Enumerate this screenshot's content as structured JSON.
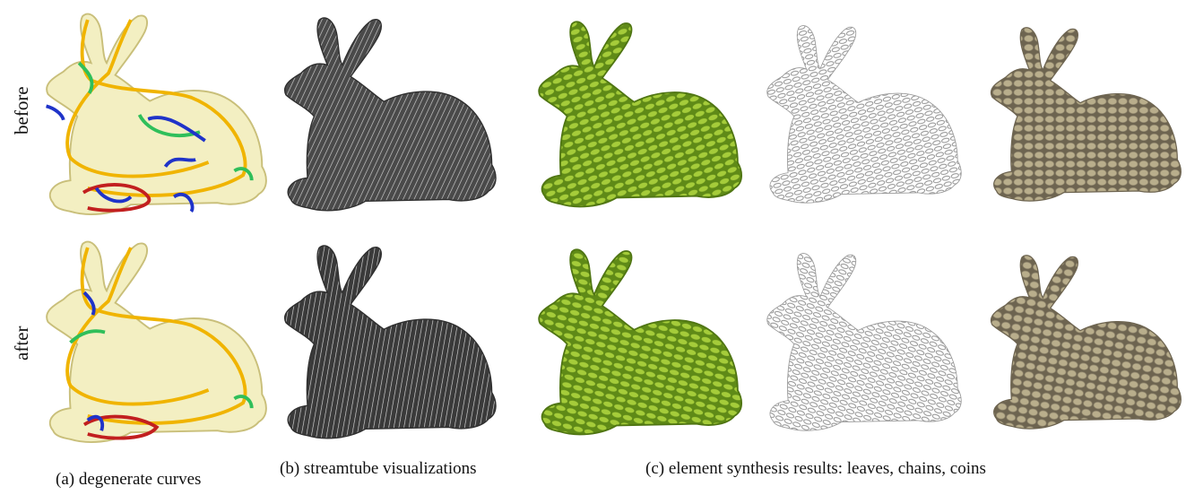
{
  "rows": {
    "before": "before",
    "after": "after"
  },
  "captions": {
    "a": "(a) degenerate curves",
    "b": "(b) streamtube visualizations",
    "c": "(c) element synthesis results: leaves, chains, coins"
  },
  "colors": {
    "mesh_fill": "#f3efc2",
    "mesh_stroke": "#c9bf7a",
    "curve_yellow": "#f0b400",
    "curve_green": "#2fbf5a",
    "curve_blue": "#1f33c9",
    "curve_red": "#c21f1f",
    "streamtube": "#2e2e2e",
    "leaves": "#6f9a1c",
    "leaves_light": "#a5cc3a",
    "chains": "#8c8c8c",
    "coins": "#b9ae8c",
    "coins_dark": "#6d6450"
  }
}
